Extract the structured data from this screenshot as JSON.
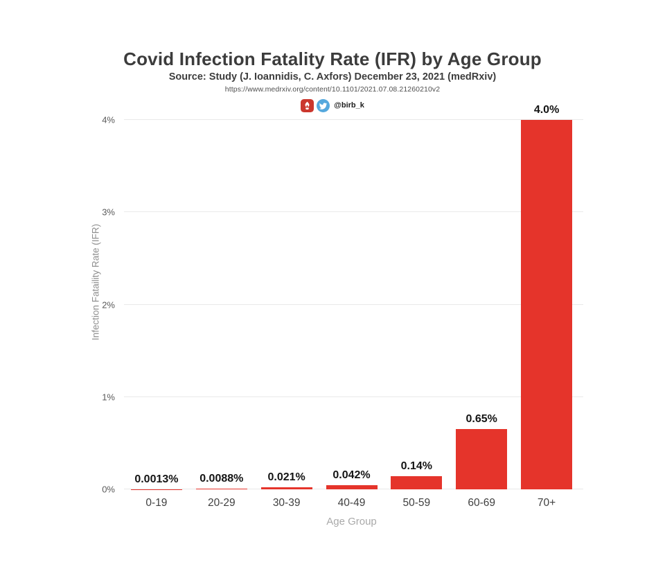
{
  "header": {
    "title": "Covid Infection Fatality Rate (IFR) by Age Group",
    "subtitle": "Source: Study (J. Ioannidis, C. Axfors) December 23, 2021 (medRxiv)",
    "url": "https://www.medrxiv.org/content/10.1101/2021.07.08.21260210v2",
    "social": {
      "red_icon": "red-social-icon",
      "twitter_icon": "twitter-bird-icon",
      "handle": "@birb_k"
    }
  },
  "chart_data": {
    "type": "bar",
    "title": "Covid Infection Fatality Rate (IFR) by Age Group",
    "categories": [
      "0-19",
      "20-29",
      "30-39",
      "40-49",
      "50-59",
      "60-69",
      "70+"
    ],
    "values": [
      0.0013,
      0.0088,
      0.021,
      0.042,
      0.14,
      0.65,
      4.0
    ],
    "value_labels": [
      "0.0013%",
      "0.0088%",
      "0.021%",
      "0.042%",
      "0.14%",
      "0.65%",
      "4.0%"
    ],
    "xlabel": "Age Group",
    "ylabel": "Infection Fataility Rate (IFR)",
    "ylim": [
      0,
      4
    ],
    "yticks": [
      "0%",
      "1%",
      "2%",
      "3%",
      "4%"
    ],
    "grid": true,
    "legend": "none",
    "colors": {
      "bar": "#e5342b",
      "grid": "#e9e9e9",
      "tick_text": "#5a5a5a",
      "category_text": "#3f3f3f",
      "value_label_text": "#141414",
      "muted_text": "#a9a9a9",
      "red_icon": "#cb372d",
      "twitter_blue": "#55a8dd"
    }
  }
}
